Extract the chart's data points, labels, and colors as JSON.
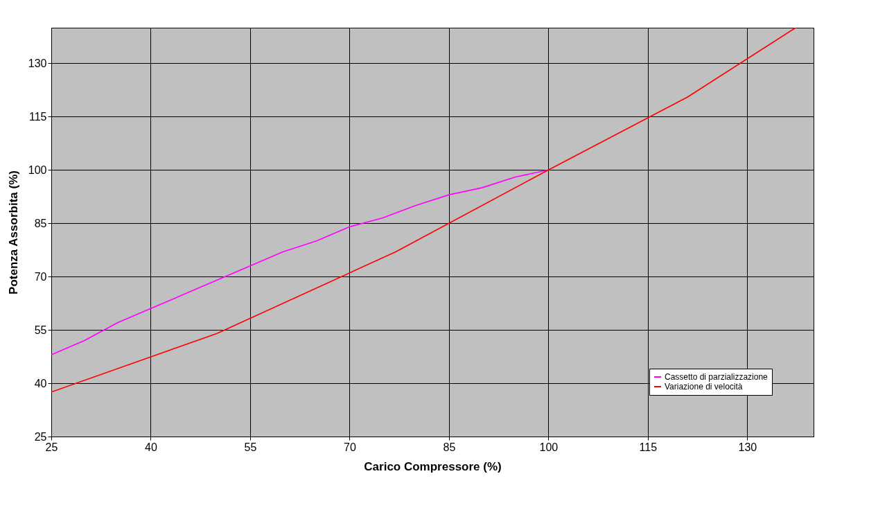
{
  "chart_data": {
    "type": "line",
    "xlabel": "Carico Compressore (%)",
    "ylabel": "Potenza Assorbita (%)",
    "xlim": [
      25,
      140
    ],
    "xticks": [
      25,
      40,
      55,
      70,
      85,
      100,
      115,
      130
    ],
    "ylim": [
      25,
      140
    ],
    "yticks": [
      25,
      40,
      55,
      70,
      85,
      100,
      115,
      130
    ],
    "grid": true,
    "legend": "bottom right",
    "marker": "none",
    "line_style": "solid",
    "series": [
      {
        "name": "Cassetto di parzializzazione",
        "color": "#ff00ff",
        "x": [
          25,
          30,
          35,
          40,
          45,
          50,
          55,
          60,
          65,
          70,
          75,
          80,
          85,
          90,
          95,
          100
        ],
        "values": [
          48,
          52,
          57,
          61,
          65,
          69,
          73,
          77,
          80,
          84,
          86.5,
          90,
          93,
          95,
          98,
          100
        ]
      },
      {
        "name": "Variazione di velocità",
        "color": "#ff0000",
        "x": [
          25,
          50,
          77,
          100,
          121,
          137.3
        ],
        "values": [
          37.5,
          54,
          77,
          100,
          120.5,
          140
        ]
      }
    ]
  }
}
